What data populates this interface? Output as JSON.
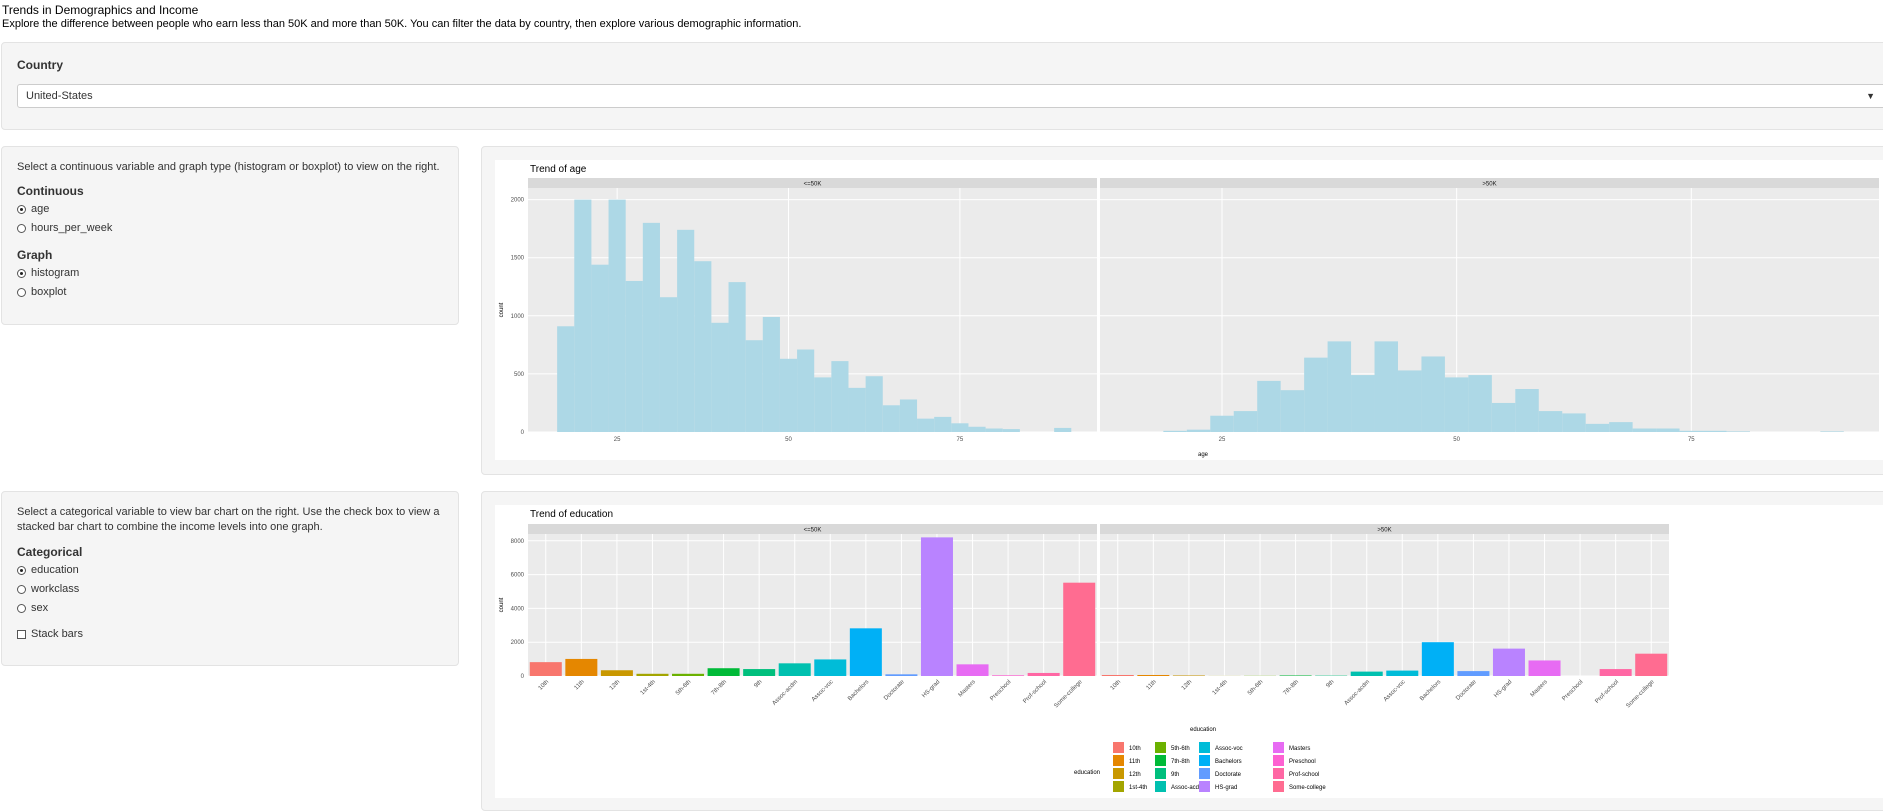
{
  "header": {
    "title": "Trends in Demographics and Income",
    "subtitle": "Explore the difference between people who earn less than 50K and more than 50K. You can filter the data by country, then explore various demographic information."
  },
  "country": {
    "label": "Country",
    "selected": "United-States"
  },
  "continuous_panel": {
    "instructions": "Select a continuous variable and graph type (histogram or boxplot) to view on the right.",
    "continuous_label": "Continuous",
    "continuous_options": [
      "age",
      "hours_per_week"
    ],
    "continuous_selected": "age",
    "graph_label": "Graph",
    "graph_options": [
      "histogram",
      "boxplot"
    ],
    "graph_selected": "histogram"
  },
  "categorical_panel": {
    "instructions_line1": "Select a categorical variable to view bar chart on the right. Use the check box to view a",
    "instructions_line2": "stacked bar chart to combine the income levels into one graph.",
    "categorical_label": "Categorical",
    "categorical_options": [
      "education",
      "workclass",
      "sex"
    ],
    "categorical_selected": "education",
    "stack_label": "Stack bars",
    "stack_checked": false
  },
  "chart_data": [
    {
      "type": "bar",
      "subtype": "histogram",
      "title": "Trend of  age",
      "xlabel": "age",
      "ylabel": "count",
      "facets": [
        "<=50K",
        ">50K"
      ],
      "xlim": [
        12,
        95
      ],
      "ylim": [
        0,
        2100
      ],
      "xticks": [
        25,
        50,
        75
      ],
      "yticks": [
        0,
        500,
        1000,
        1500,
        2000
      ],
      "bin_width": 2.5,
      "bins_start": [
        16.25,
        18.75,
        21.25,
        23.75,
        26.25,
        28.75,
        31.25,
        33.75,
        36.25,
        38.75,
        41.25,
        43.75,
        46.25,
        48.75,
        51.25,
        53.75,
        56.25,
        58.75,
        61.25,
        63.75,
        66.25,
        68.75,
        71.25,
        73.75,
        76.25,
        78.75,
        81.25,
        83.75,
        86.25,
        88.75
      ],
      "series": [
        {
          "name": "<=50K",
          "values": [
            910,
            2000,
            1440,
            2000,
            1300,
            1800,
            1160,
            1740,
            1470,
            940,
            1290,
            790,
            990,
            630,
            710,
            470,
            610,
            380,
            480,
            230,
            280,
            115,
            130,
            75,
            45,
            30,
            25,
            0,
            0,
            35
          ]
        },
        {
          "name": ">50K",
          "values": [
            0,
            10,
            20,
            140,
            180,
            440,
            360,
            640,
            780,
            490,
            780,
            530,
            650,
            470,
            490,
            250,
            370,
            180,
            160,
            70,
            85,
            30,
            30,
            10,
            10,
            5,
            0,
            0,
            0,
            5
          ]
        }
      ],
      "bar_color": "#add8e6"
    },
    {
      "type": "bar",
      "title": "Trend of  education",
      "xlabel": "education",
      "ylabel": "count",
      "facets": [
        "<=50K",
        ">50K"
      ],
      "ylim": [
        0,
        8400
      ],
      "yticks": [
        0,
        2000,
        4000,
        6000,
        8000
      ],
      "categories": [
        "10th",
        "11th",
        "12th",
        "1st-4th",
        "5th-6th",
        "7th-8th",
        "9th",
        "Assoc-acdm",
        "Assoc-voc",
        "Bachelors",
        "Doctorate",
        "HS-grad",
        "Masters",
        "Preschool",
        "Prof-school",
        "Some-college"
      ],
      "series": [
        {
          "name": "<=50K",
          "values": [
            820,
            1010,
            340,
            130,
            130,
            460,
            410,
            750,
            980,
            2820,
            100,
            8200,
            690,
            40,
            180,
            5520
          ]
        },
        {
          "name": ">50K",
          "values": [
            60,
            60,
            30,
            5,
            10,
            30,
            20,
            260,
            320,
            2000,
            290,
            1620,
            920,
            0,
            410,
            1320
          ]
        }
      ],
      "colors": [
        "#F8766D",
        "#E58700",
        "#C99800",
        "#A3A500",
        "#6BB100",
        "#00BA38",
        "#00BF7D",
        "#00C0AF",
        "#00BCD8",
        "#00B0F6",
        "#619CFF",
        "#B983FF",
        "#E76BF3",
        "#FD61D1",
        "#FF67A4",
        "#FF6C91"
      ],
      "legend": {
        "title": "education",
        "placement": "bottom",
        "entries": [
          "10th",
          "11th",
          "12th",
          "1st-4th",
          "5th-6th",
          "7th-8th",
          "9th",
          "Assoc-acdm",
          "Assoc-voc",
          "Bachelors",
          "Doctorate",
          "HS-grad",
          "Masters",
          "Preschool",
          "Prof-school",
          "Some-college"
        ]
      }
    }
  ]
}
